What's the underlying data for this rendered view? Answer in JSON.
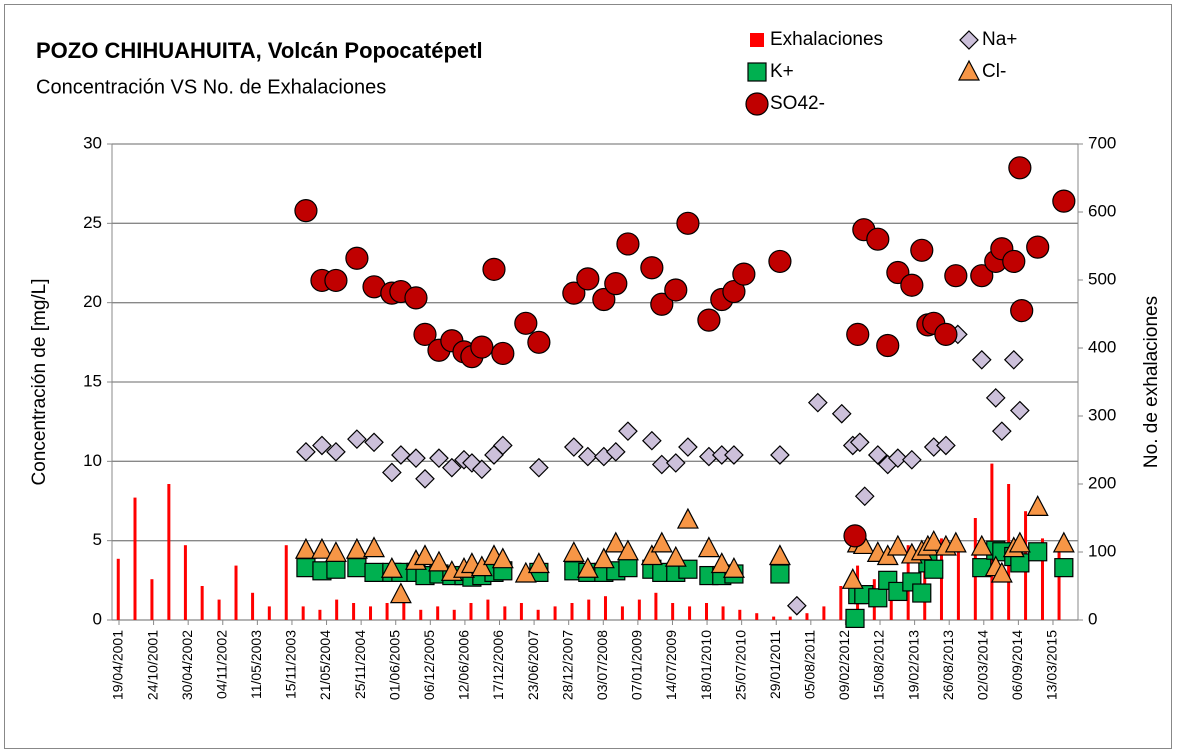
{
  "chart_data": {
    "type": "scatter",
    "title": "POZO CHIHUAHUITA, Volcán Popocatépetl",
    "subtitle": "Concentración VS No. de Exhalaciones",
    "y_label": "Concentración de  [mg/L]",
    "y2_label": "No. de exhalaciones",
    "xlim": [
      "12/03/2001",
      "27/07/2015"
    ],
    "xticks": [
      "19/04/2001",
      "24/10/2001",
      "30/04/2002",
      "04/11/2002",
      "11/05/2003",
      "15/11/2003",
      "21/05/2004",
      "25/11/2004",
      "01/06/2005",
      "06/12/2005",
      "12/06/2006",
      "17/12/2006",
      "23/06/2007",
      "28/12/2007",
      "03/07/2008",
      "07/01/2009",
      "14/07/2009",
      "18/01/2010",
      "25/07/2010",
      "29/01/2011",
      "05/08/2011",
      "09/02/2012",
      "15/08/2012",
      "19/02/2013",
      "26/08/2013",
      "02/03/2014",
      "06/09/2014",
      "13/03/2015"
    ],
    "ylim": [
      0,
      30
    ],
    "yticks": [
      0,
      5,
      10,
      15,
      20,
      25,
      30
    ],
    "y2lim": [
      0,
      700
    ],
    "y2ticks": [
      0,
      100,
      200,
      300,
      400,
      500,
      600,
      700
    ],
    "grid": true,
    "legend": "top-right",
    "series": [
      {
        "name": "Exhalaciones",
        "marker": "bar",
        "color": "#ff0000",
        "axis": "y2",
        "x": [
          "15/04/2001",
          "15/07/2001",
          "15/10/2001",
          "15/01/2002",
          "15/04/2002",
          "15/07/2002",
          "15/10/2002",
          "15/01/2003",
          "15/04/2003",
          "15/07/2003",
          "15/10/2003",
          "15/01/2004",
          "15/04/2004",
          "15/07/2004",
          "15/10/2004",
          "15/01/2005",
          "15/04/2005",
          "15/07/2005",
          "15/10/2005",
          "15/01/2006",
          "15/04/2006",
          "15/07/2006",
          "15/10/2006",
          "15/01/2007",
          "15/04/2007",
          "15/07/2007",
          "15/10/2007",
          "15/01/2008",
          "15/04/2008",
          "15/07/2008",
          "15/10/2008",
          "15/01/2009",
          "15/04/2009",
          "15/07/2009",
          "15/10/2009",
          "15/01/2010",
          "15/04/2010",
          "15/07/2010",
          "15/10/2010",
          "15/01/2011",
          "15/04/2011",
          "15/07/2011",
          "15/10/2011",
          "15/01/2012",
          "15/04/2012",
          "15/07/2012",
          "15/10/2012",
          "15/01/2013",
          "15/04/2013",
          "15/07/2013",
          "15/10/2013",
          "15/01/2014",
          "15/04/2014",
          "15/07/2014",
          "15/10/2014",
          "15/01/2015",
          "15/04/2015"
        ],
        "values": [
          90,
          180,
          60,
          200,
          110,
          50,
          30,
          80,
          40,
          20,
          110,
          20,
          15,
          30,
          25,
          20,
          25,
          30,
          15,
          20,
          15,
          25,
          30,
          20,
          25,
          15,
          20,
          25,
          30,
          35,
          20,
          30,
          40,
          25,
          20,
          25,
          20,
          15,
          10,
          5,
          5,
          10,
          20,
          50,
          80,
          60,
          70,
          110,
          90,
          120,
          100,
          150,
          230,
          200,
          160,
          120,
          100
        ]
      },
      {
        "name": "Na+",
        "marker": "diamond",
        "color": "#ccc0da",
        "x": [
          "30/01/2004",
          "26/04/2004",
          "11/07/2004",
          "02/11/2004",
          "03/02/2005",
          "11/05/2005",
          "29/06/2005",
          "19/09/2005",
          "07/11/2005",
          "22/01/2006",
          "02/04/2006",
          "07/06/2006",
          "20/07/2006",
          "12/09/2006",
          "17/11/2006",
          "04/01/2007",
          "19/07/2007",
          "25/01/2008",
          "10/04/2008",
          "06/07/2008",
          "09/09/2008",
          "14/11/2008",
          "24/03/2009",
          "17/05/2009",
          "01/08/2009",
          "06/10/2009",
          "28/01/2010",
          "08/04/2010",
          "13/06/2010",
          "18/02/2011",
          "21/05/2011",
          "12/09/2011",
          "20/01/2012",
          "20/03/2012",
          "27/04/2012",
          "24/05/2012",
          "03/08/2012",
          "26/09/2012",
          "20/11/2012",
          "04/02/2013",
          "03/06/2013",
          "08/08/2013",
          "12/10/2013",
          "19/02/2014",
          "06/05/2014",
          "08/06/2014",
          "12/08/2014",
          "14/09/2014"
        ],
        "values": [
          10.6,
          11.0,
          10.6,
          11.4,
          11.2,
          9.3,
          10.4,
          10.2,
          8.9,
          10.2,
          9.6,
          10.1,
          9.9,
          9.5,
          10.4,
          11.0,
          9.6,
          10.9,
          10.3,
          10.3,
          10.6,
          11.9,
          11.3,
          9.8,
          9.9,
          10.9,
          10.3,
          10.4,
          10.4,
          10.4,
          0.9,
          13.7,
          13.0,
          11.0,
          11.2,
          7.8,
          10.4,
          9.8,
          10.2,
          10.1,
          10.9,
          11.0,
          18.0,
          16.4,
          14.0,
          11.9,
          16.4,
          13.2
        ]
      },
      {
        "name": "K+",
        "marker": "square",
        "color": "#00b050",
        "x": [
          "30/01/2004",
          "26/04/2004",
          "11/07/2004",
          "02/11/2004",
          "03/02/2005",
          "11/05/2005",
          "29/06/2005",
          "19/09/2005",
          "07/11/2005",
          "22/01/2006",
          "02/04/2006",
          "07/06/2006",
          "20/07/2006",
          "12/09/2006",
          "17/11/2006",
          "04/01/2007",
          "19/07/2007",
          "25/01/2008",
          "10/04/2008",
          "06/07/2008",
          "09/09/2008",
          "14/11/2008",
          "24/03/2009",
          "17/05/2009",
          "01/08/2009",
          "06/10/2009",
          "28/01/2010",
          "08/04/2010",
          "13/06/2010",
          "18/02/2011",
          "01/04/2012",
          "16/04/2012",
          "19/05/2012",
          "03/08/2012",
          "26/09/2012",
          "20/11/2012",
          "04/02/2013",
          "30/03/2013",
          "02/05/2013",
          "03/06/2013",
          "19/02/2014",
          "06/05/2014",
          "08/06/2014",
          "12/08/2014",
          "14/09/2014",
          "20/12/2014",
          "11/05/2015"
        ],
        "values": [
          3.3,
          3.1,
          3.2,
          3.3,
          3.0,
          3.0,
          3.0,
          3.0,
          2.8,
          2.9,
          2.8,
          2.8,
          2.7,
          2.8,
          3.0,
          3.1,
          3.0,
          3.1,
          3.0,
          3.0,
          3.1,
          3.3,
          3.2,
          3.0,
          3.0,
          3.2,
          2.8,
          2.8,
          2.9,
          2.9,
          0.1,
          1.6,
          1.6,
          1.4,
          2.5,
          1.8,
          2.4,
          1.7,
          3.6,
          3.2,
          3.3,
          4.4,
          4.3,
          4.0,
          3.6,
          4.3,
          3.3
        ]
      },
      {
        "name": "Cl-",
        "marker": "triangle",
        "color": "#f79646",
        "x": [
          "30/01/2004",
          "26/04/2004",
          "11/07/2004",
          "02/11/2004",
          "03/02/2005",
          "11/05/2005",
          "29/06/2005",
          "19/09/2005",
          "07/11/2005",
          "22/01/2006",
          "02/04/2006",
          "07/06/2006",
          "20/07/2006",
          "12/09/2006",
          "17/11/2006",
          "04/01/2007",
          "09/05/2007",
          "19/07/2007",
          "25/01/2008",
          "10/04/2008",
          "06/07/2008",
          "09/09/2008",
          "14/11/2008",
          "24/03/2009",
          "17/05/2009",
          "01/08/2009",
          "06/10/2009",
          "28/01/2010",
          "08/04/2010",
          "13/06/2010",
          "18/02/2011",
          "20/03/2012",
          "16/04/2012",
          "19/05/2012",
          "03/08/2012",
          "26/09/2012",
          "20/11/2012",
          "04/02/2013",
          "30/03/2013",
          "02/05/2013",
          "03/06/2013",
          "08/08/2013",
          "01/10/2013",
          "19/02/2014",
          "06/05/2014",
          "08/06/2014",
          "12/08/2014",
          "14/09/2014",
          "20/12/2014",
          "11/05/2015"
        ],
        "values": [
          4.4,
          4.4,
          4.2,
          4.4,
          4.5,
          3.2,
          1.6,
          3.7,
          4.0,
          3.6,
          3.0,
          3.2,
          3.5,
          3.3,
          4.0,
          3.8,
          2.9,
          3.5,
          4.2,
          3.2,
          3.8,
          4.8,
          4.3,
          4.0,
          4.8,
          3.9,
          6.3,
          4.5,
          3.5,
          3.2,
          4.0,
          2.5,
          4.8,
          4.7,
          4.2,
          4.0,
          4.6,
          4.1,
          4.3,
          4.6,
          4.9,
          4.6,
          4.8,
          4.6,
          3.3,
          2.9,
          4.5,
          4.8,
          7.1,
          4.8
        ]
      },
      {
        "name": "SO42-",
        "marker": "circle",
        "color": "#c00000",
        "x": [
          "30/01/2004",
          "26/04/2004",
          "11/07/2004",
          "02/11/2004",
          "03/02/2005",
          "11/05/2005",
          "29/06/2005",
          "19/09/2005",
          "07/11/2005",
          "22/01/2006",
          "02/04/2006",
          "07/06/2006",
          "20/07/2006",
          "12/09/2006",
          "17/11/2006",
          "04/01/2007",
          "09/05/2007",
          "19/07/2007",
          "25/01/2008",
          "10/04/2008",
          "06/07/2008",
          "09/09/2008",
          "14/11/2008",
          "24/03/2009",
          "17/05/2009",
          "01/08/2009",
          "06/10/2009",
          "28/01/2010",
          "08/04/2010",
          "13/06/2010",
          "06/08/2010",
          "18/02/2011",
          "01/04/2012",
          "16/04/2012",
          "19/05/2012",
          "03/08/2012",
          "26/09/2012",
          "20/11/2012",
          "04/02/2013",
          "30/03/2013",
          "02/05/2013",
          "03/06/2013",
          "08/08/2013",
          "01/10/2013",
          "19/02/2014",
          "06/05/2014",
          "08/06/2014",
          "12/08/2014",
          "14/09/2014",
          "24/09/2014",
          "20/12/2014",
          "11/05/2015"
        ],
        "values": [
          25.8,
          21.4,
          21.4,
          22.8,
          21.0,
          20.6,
          20.7,
          20.3,
          18.0,
          17.0,
          17.6,
          16.9,
          16.6,
          17.2,
          22.1,
          16.8,
          18.7,
          17.5,
          20.6,
          21.5,
          20.2,
          21.2,
          23.7,
          22.2,
          19.9,
          20.8,
          25.0,
          18.9,
          20.2,
          20.7,
          21.8,
          22.6,
          5.3,
          18.0,
          24.6,
          24.0,
          17.3,
          21.9,
          21.1,
          23.3,
          18.6,
          18.7,
          18.0,
          21.7,
          21.7,
          22.6,
          23.4,
          22.6,
          28.5,
          19.5,
          23.5,
          26.4
        ]
      }
    ]
  }
}
